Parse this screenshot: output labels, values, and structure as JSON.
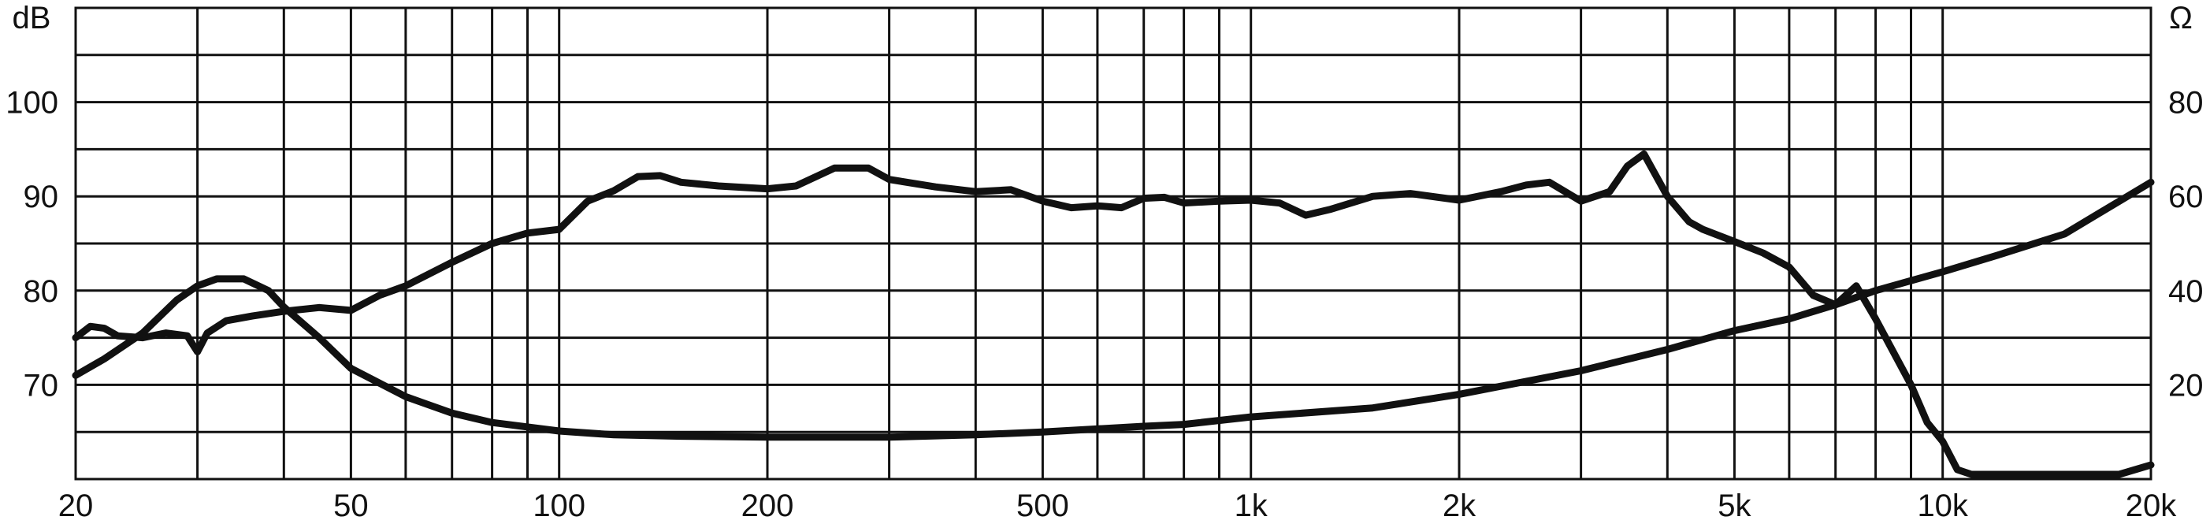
{
  "chart_data": {
    "type": "line",
    "title": "",
    "xlabel": "",
    "ylabel": "dB",
    "y2label": "Ω",
    "x_scale": "log",
    "xlim": [
      20,
      20000
    ],
    "ylim": [
      60,
      110
    ],
    "y2lim": [
      0,
      100
    ],
    "grid": true,
    "legend": "none",
    "line_color": "#111111",
    "x_ticks": [
      {
        "value": 20,
        "label": "20"
      },
      {
        "value": 50,
        "label": "50"
      },
      {
        "value": 100,
        "label": "100"
      },
      {
        "value": 200,
        "label": "200"
      },
      {
        "value": 500,
        "label": "500"
      },
      {
        "value": 1000,
        "label": "1k"
      },
      {
        "value": 2000,
        "label": "2k"
      },
      {
        "value": 5000,
        "label": "5k"
      },
      {
        "value": 10000,
        "label": "10k"
      },
      {
        "value": 20000,
        "label": "20k"
      }
    ],
    "y_ticks": [
      {
        "value": 70,
        "label": "70"
      },
      {
        "value": 80,
        "label": "80"
      },
      {
        "value": 90,
        "label": "90"
      },
      {
        "value": 100,
        "label": "100"
      }
    ],
    "y2_ticks": [
      {
        "value": 20,
        "label": "20"
      },
      {
        "value": 40,
        "label": "40"
      },
      {
        "value": 60,
        "label": "60"
      },
      {
        "value": 80,
        "label": "80"
      }
    ],
    "series": [
      {
        "axis": "left",
        "x": [
          20,
          21,
          22,
          23,
          25,
          27,
          29,
          30,
          31,
          33,
          36,
          40,
          45,
          50,
          55,
          60,
          70,
          80,
          90,
          100,
          110,
          120,
          130,
          140,
          150,
          170,
          200,
          220,
          250,
          280,
          300,
          350,
          400,
          450,
          500,
          550,
          600,
          650,
          700,
          750,
          800,
          900,
          1000,
          1100,
          1200,
          1300,
          1500,
          1700,
          2000,
          2300,
          2500,
          2700,
          3000,
          3300,
          3500,
          3700,
          4000,
          4300,
          4500,
          5000,
          5500,
          6000,
          6500,
          7000,
          7500,
          8000,
          9000,
          9500,
          10000,
          10500,
          11000,
          13000,
          15000,
          18000,
          20000
        ],
        "y": [
          75,
          76.2,
          76,
          75.2,
          75,
          75.5,
          75.2,
          73.5,
          75.5,
          76.8,
          77.3,
          77.8,
          78.2,
          77.9,
          79.5,
          80.5,
          83,
          85,
          86.1,
          86.5,
          89.5,
          90.6,
          92.1,
          92.2,
          91.5,
          91.1,
          90.8,
          91.1,
          93,
          93,
          91.8,
          91,
          90.5,
          90.7,
          89.5,
          88.8,
          89,
          88.8,
          89.8,
          89.9,
          89.3,
          89.5,
          89.6,
          89.3,
          88,
          88.6,
          90,
          90.3,
          89.6,
          90.5,
          91.2,
          91.5,
          89.5,
          90.5,
          93.2,
          94.5,
          90,
          87.3,
          86.5,
          85.2,
          84,
          82.5,
          79.5,
          78.5,
          80.5,
          77,
          70,
          66,
          64,
          61,
          60.5,
          60.5,
          60.5,
          60.5,
          61.5
        ]
      },
      {
        "axis": "right",
        "x": [
          20,
          22,
          25,
          28,
          30,
          32,
          35,
          38,
          40,
          45,
          50,
          60,
          70,
          80,
          100,
          120,
          150,
          200,
          300,
          400,
          500,
          700,
          800,
          1000,
          1500,
          2000,
          3000,
          4000,
          5000,
          6000,
          7000,
          8000,
          10000,
          12000,
          15000,
          20000
        ],
        "y": [
          22,
          25.5,
          31,
          38,
          41,
          42.5,
          42.5,
          40,
          36.5,
          30,
          23.5,
          17.5,
          14,
          12,
          10.2,
          9.4,
          9.1,
          8.9,
          8.9,
          9.4,
          10,
          11.2,
          11.6,
          13.2,
          15.1,
          18,
          23,
          27.5,
          31.5,
          34,
          37,
          40,
          44,
          47.5,
          52,
          63
        ]
      }
    ]
  }
}
